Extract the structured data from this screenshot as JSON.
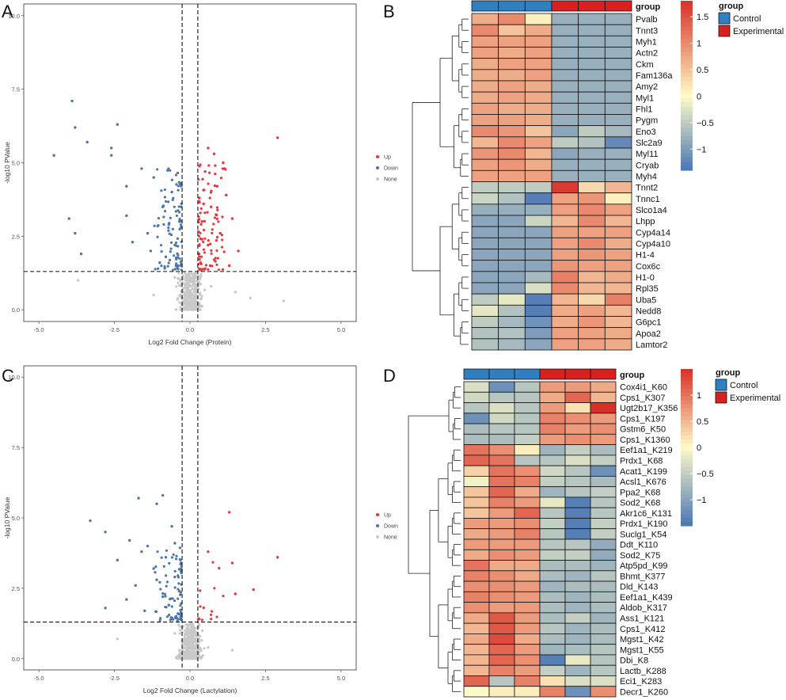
{
  "colors": {
    "up": "#e8363a",
    "down": "#4a76ab",
    "none": "#c8c8c8",
    "control": "#2f7fc1",
    "experimental": "#d8211e",
    "heat_low": "#4a76b5",
    "heat_mid": "#fffbc8",
    "heat_high": "#d73027"
  },
  "chart_data": [
    {
      "panel": "A",
      "type": "scatter",
      "xlabel": "Log2 Fold Change (Protein)",
      "ylabel": "-log10 PValue",
      "xlim": [
        -5.5,
        5.5
      ],
      "ylim": [
        -0.4,
        10.4
      ],
      "xticks": [
        -5.0,
        -2.5,
        0.0,
        2.5,
        5.0
      ],
      "yticks": [
        0.0,
        2.5,
        5.0,
        7.5,
        10.0
      ],
      "xtick_labels": [
        "-5.0",
        "-2.5",
        "0.0",
        "2.5",
        "5.0"
      ],
      "ytick_labels": [
        "0.0",
        "2.5",
        "5.0",
        "7.5",
        "10.0"
      ],
      "vlines": [
        -0.26,
        0.26
      ],
      "hline": 1.3,
      "legend": [
        "Up",
        "Down",
        "None"
      ],
      "series": [
        {
          "name": "Up",
          "points": [
            [
              2.9,
              5.85
            ],
            [
              0.6,
              5.5
            ],
            [
              0.8,
              5.3
            ],
            [
              1.1,
              5.0
            ],
            [
              0.5,
              4.7
            ],
            [
              0.9,
              4.2
            ],
            [
              1.2,
              3.9
            ],
            [
              0.7,
              3.5
            ],
            [
              1.4,
              3.1
            ],
            [
              0.4,
              3.0
            ],
            [
              1.0,
              2.6
            ],
            [
              0.6,
              2.2
            ],
            [
              1.6,
              2.0
            ],
            [
              0.3,
              1.9
            ],
            [
              0.8,
              1.7
            ],
            [
              1.3,
              1.5
            ],
            [
              0.5,
              1.4
            ],
            [
              0.4,
              2.4
            ],
            [
              0.35,
              1.6
            ],
            [
              0.45,
              3.6
            ]
          ]
        },
        {
          "name": "Down",
          "points": [
            [
              -3.9,
              7.1
            ],
            [
              -3.8,
              6.2
            ],
            [
              -2.4,
              6.3
            ],
            [
              -3.4,
              5.7
            ],
            [
              -2.6,
              5.5
            ],
            [
              -4.5,
              5.25
            ],
            [
              -2.6,
              5.25
            ],
            [
              -4.0,
              3.1
            ],
            [
              -3.8,
              2.6
            ],
            [
              -3.6,
              1.9
            ],
            [
              -2.1,
              4.2
            ],
            [
              -1.6,
              4.8
            ],
            [
              -1.2,
              4.5
            ],
            [
              -0.9,
              3.5
            ],
            [
              -0.7,
              2.9
            ],
            [
              -1.4,
              2.6
            ],
            [
              -2.1,
              3.2
            ],
            [
              -0.5,
              2.2
            ],
            [
              -0.8,
              1.8
            ],
            [
              -0.4,
              1.5
            ],
            [
              -1.0,
              1.6
            ],
            [
              -1.9,
              2.3
            ],
            [
              -0.6,
              4.0
            ],
            [
              -0.35,
              3.0
            ],
            [
              -1.3,
              2.0
            ]
          ]
        },
        {
          "name": "None",
          "points": [
            [
              0.0,
              0.5
            ],
            [
              0.1,
              0.3
            ],
            [
              -0.1,
              0.7
            ],
            [
              0.15,
              1.0
            ],
            [
              -0.15,
              0.9
            ],
            [
              0.05,
              0.2
            ],
            [
              -0.05,
              0.4
            ],
            [
              1.5,
              0.6
            ],
            [
              -1.2,
              0.5
            ],
            [
              -3.7,
              1.0
            ],
            [
              2.0,
              0.4
            ],
            [
              3.1,
              0.3
            ],
            [
              -0.5,
              1.1
            ],
            [
              0.7,
              0.8
            ]
          ]
        }
      ]
    },
    {
      "panel": "C",
      "type": "scatter",
      "xlabel": "Log2 Fold Change (Lactylation)",
      "ylabel": "-log10 PValue",
      "xlim": [
        -5.5,
        5.5
      ],
      "ylim": [
        -0.4,
        10.4
      ],
      "xticks": [
        -5.0,
        -2.5,
        0.0,
        2.5,
        5.0
      ],
      "yticks": [
        0.0,
        2.5,
        5.0,
        7.5,
        10.0
      ],
      "xtick_labels": [
        "-5.0",
        "-2.5",
        "0.0",
        "2.5",
        "5.0"
      ],
      "ytick_labels": [
        "0.0",
        "2.5",
        "5.0",
        "7.5",
        "10.0"
      ],
      "vlines": [
        -0.26,
        0.26
      ],
      "hline": 1.3,
      "legend": [
        "Up",
        "Down",
        "None"
      ],
      "series": [
        {
          "name": "Up",
          "points": [
            [
              1.3,
              5.2
            ],
            [
              0.6,
              3.8
            ],
            [
              1.4,
              3.4
            ],
            [
              2.9,
              3.6
            ],
            [
              2.1,
              2.45
            ],
            [
              1.5,
              2.3
            ]
          ]
        },
        {
          "name": "Down",
          "points": [
            [
              -3.3,
              4.9
            ],
            [
              -2.8,
              4.5
            ],
            [
              -1.7,
              5.7
            ],
            [
              -0.9,
              5.8
            ],
            [
              -1.1,
              5.5
            ],
            [
              -2.0,
              4.2
            ],
            [
              -1.4,
              4.0
            ],
            [
              -0.6,
              4.7
            ],
            [
              -0.8,
              3.6
            ],
            [
              -1.2,
              3.2
            ],
            [
              -2.4,
              3.5
            ],
            [
              -1.8,
              2.6
            ],
            [
              -0.5,
              2.9
            ],
            [
              -0.9,
              2.2
            ],
            [
              -2.8,
              1.8
            ],
            [
              -1.5,
              1.7
            ],
            [
              -0.4,
              1.6
            ],
            [
              -2.1,
              2.1
            ],
            [
              -0.7,
              1.9
            ],
            [
              -1.1,
              2.8
            ],
            [
              -0.3,
              3.4
            ],
            [
              -0.5,
              4.1
            ],
            [
              -1.6,
              3.8
            ],
            [
              -0.35,
              2.4
            ]
          ]
        },
        {
          "name": "None",
          "points": [
            [
              0.0,
              0.5
            ],
            [
              0.1,
              0.2
            ],
            [
              -0.1,
              0.7
            ],
            [
              0.15,
              1.0
            ],
            [
              -0.15,
              0.9
            ],
            [
              -2.4,
              0.7
            ],
            [
              0.6,
              0.4
            ],
            [
              1.4,
              0.3
            ],
            [
              -0.05,
              0.05
            ],
            [
              0.05,
              1.2
            ],
            [
              -0.5,
              0.9
            ],
            [
              0.3,
              0.6
            ]
          ]
        }
      ]
    },
    {
      "panel": "B",
      "type": "heatmap",
      "annotation_label": "group",
      "column_groups": [
        "Control",
        "Control",
        "Control",
        "Experimental",
        "Experimental",
        "Experimental"
      ],
      "rows": [
        "Pvalb",
        "Tnnt3",
        "Myh1",
        "Actn2",
        "Ckm",
        "Fam136a",
        "Amy2",
        "Myl1",
        "Fhl1",
        "Pygm",
        "Eno3",
        "Slc2a9",
        "Myl11",
        "Cryab",
        "Myh4",
        "Tnnt2",
        "Tnnc1",
        "Slco1a4",
        "Lhpp",
        "Cyp4a14",
        "Cyp4a10",
        "H1-4",
        "Cox6c",
        "H1-0",
        "Rpl35",
        "Uba5",
        "Nedd8",
        "G6pc1",
        "Apoa2",
        "Lamtor2"
      ],
      "values": [
        [
          0.7,
          1.0,
          0.1,
          -0.8,
          -0.8,
          -0.8
        ],
        [
          1.0,
          0.5,
          0.7,
          -0.8,
          -0.8,
          -0.8
        ],
        [
          0.8,
          0.8,
          0.8,
          -0.8,
          -0.8,
          -0.8
        ],
        [
          0.8,
          0.7,
          0.8,
          -0.8,
          -0.8,
          -0.8
        ],
        [
          0.7,
          0.8,
          0.8,
          -0.8,
          -0.8,
          -0.8
        ],
        [
          0.7,
          0.7,
          0.8,
          -0.8,
          -0.8,
          -0.8
        ],
        [
          0.7,
          0.8,
          0.7,
          -0.8,
          -0.8,
          -0.8
        ],
        [
          0.7,
          0.8,
          0.7,
          -0.8,
          -0.8,
          -0.8
        ],
        [
          0.8,
          0.7,
          0.7,
          -0.8,
          -0.8,
          -0.8
        ],
        [
          0.8,
          0.8,
          0.7,
          -0.8,
          -0.8,
          -0.8
        ],
        [
          1.0,
          0.9,
          0.5,
          -0.9,
          -0.5,
          -0.7
        ],
        [
          0.6,
          1.0,
          0.8,
          -0.5,
          -0.6,
          -1.2
        ],
        [
          0.9,
          1.0,
          0.6,
          -0.9,
          -0.8,
          -0.8
        ],
        [
          0.8,
          0.9,
          0.7,
          -0.8,
          -0.8,
          -0.8
        ],
        [
          0.8,
          0.8,
          0.8,
          -0.8,
          -0.8,
          -0.8
        ],
        [
          -0.5,
          -0.5,
          -0.5,
          1.7,
          0.3,
          0.6
        ],
        [
          -0.4,
          -0.6,
          -1.3,
          0.8,
          0.9,
          0.1
        ],
        [
          -0.8,
          -0.8,
          -0.8,
          0.8,
          1.0,
          0.8
        ],
        [
          -0.9,
          -0.9,
          -0.4,
          0.6,
          1.0,
          0.6
        ],
        [
          -0.9,
          -0.9,
          -0.9,
          0.8,
          0.8,
          0.8
        ],
        [
          -0.9,
          -0.9,
          -0.9,
          0.8,
          1.0,
          0.7
        ],
        [
          -0.9,
          -0.9,
          -0.9,
          0.8,
          0.9,
          0.8
        ],
        [
          -0.9,
          -0.9,
          -0.9,
          0.9,
          0.8,
          0.8
        ],
        [
          -0.9,
          -0.9,
          -0.7,
          1.1,
          0.6,
          0.7
        ],
        [
          -0.9,
          -0.9,
          -0.3,
          1.0,
          0.6,
          0.6
        ],
        [
          -0.5,
          -0.2,
          -1.3,
          0.6,
          0.3,
          1.1
        ],
        [
          -0.2,
          -0.6,
          -1.3,
          0.7,
          0.8,
          0.6
        ],
        [
          -0.5,
          -0.7,
          -1.1,
          0.7,
          0.9,
          0.6
        ],
        [
          -0.6,
          -0.6,
          -1.0,
          0.8,
          0.8,
          0.7
        ],
        [
          -0.6,
          -0.7,
          -0.9,
          0.8,
          0.8,
          0.7
        ]
      ],
      "colorbar_ticks": [
        1.5,
        1,
        0.5,
        0,
        -0.5,
        -1
      ],
      "colorbar_labels": [
        "1.5",
        "1",
        "0.5",
        "0",
        "−0.5",
        "−1"
      ],
      "colorbar_range": [
        -1.4,
        1.8
      ],
      "legend_title": "group",
      "legend_items": [
        "Control",
        "Experimental"
      ]
    },
    {
      "panel": "D",
      "type": "heatmap",
      "annotation_label": "group",
      "column_groups": [
        "Control",
        "Control",
        "Control",
        "Experimental",
        "Experimental",
        "Experimental"
      ],
      "rows": [
        "Cox4i1_K60",
        "Cps1_K307",
        "Ugt2b17_K356",
        "Cps1_K197",
        "Gstm6_K50",
        "Cps1_K1360",
        "Eef1a1_K219",
        "Prdx1_K68",
        "Acat1_K199",
        "Acsl1_K676",
        "Ppa2_K68",
        "Sod2_K68",
        "Akr1c6_K131",
        "Prdx1_K190",
        "Suclg1_K54",
        "Ddt_K110",
        "Sod2_K75",
        "Atp5pd_K99",
        "Bhmt_K377",
        "Dld_K143",
        "Eef1a1_K439",
        "Aldob_K317",
        "Ass1_K121",
        "Cps1_K412",
        "Mgst1_K42",
        "Mgst1_K55",
        "Dbi_K8",
        "Lactb_K288",
        "Eci1_K283",
        "Decr1_K260"
      ],
      "values": [
        [
          -0.3,
          -1.2,
          -0.6,
          0.7,
          0.7,
          0.6
        ],
        [
          -0.4,
          -0.6,
          -0.6,
          0.6,
          1.1,
          0.5
        ],
        [
          -0.6,
          -0.3,
          -0.6,
          0.7,
          0.2,
          1.5
        ],
        [
          -1.2,
          -0.4,
          -0.6,
          0.9,
          0.8,
          0.7
        ],
        [
          -0.7,
          -0.6,
          -0.6,
          0.9,
          0.7,
          0.8
        ],
        [
          -0.7,
          -0.7,
          -0.5,
          0.7,
          0.8,
          0.7
        ],
        [
          1.0,
          0.8,
          0.1,
          -0.8,
          -0.5,
          -0.7
        ],
        [
          1.1,
          1.0,
          -0.6,
          -0.6,
          -0.3,
          -0.5
        ],
        [
          0.3,
          1.0,
          0.8,
          -0.4,
          -0.6,
          -1.2
        ],
        [
          -0.1,
          1.0,
          0.9,
          -0.5,
          -0.6,
          -0.7
        ],
        [
          0.4,
          1.1,
          0.6,
          -0.8,
          -0.6,
          -0.5
        ],
        [
          0.4,
          0.9,
          0.7,
          -0.2,
          -1.4,
          -0.6
        ],
        [
          0.4,
          0.7,
          1.1,
          -0.6,
          -1.4,
          -0.6
        ],
        [
          0.7,
          0.7,
          0.8,
          -0.5,
          -1.4,
          -0.5
        ],
        [
          0.6,
          0.7,
          0.9,
          -0.6,
          -1.4,
          -0.5
        ],
        [
          0.7,
          0.7,
          0.7,
          -0.6,
          -0.6,
          -0.9
        ],
        [
          0.6,
          0.8,
          0.7,
          -0.5,
          -0.5,
          -0.9
        ],
        [
          1.0,
          0.6,
          0.6,
          -0.7,
          -0.7,
          -0.8
        ],
        [
          0.9,
          0.8,
          0.6,
          -0.7,
          -0.8,
          -0.6
        ],
        [
          0.8,
          0.8,
          0.7,
          -0.8,
          -0.7,
          -0.7
        ],
        [
          0.9,
          0.8,
          0.7,
          -0.7,
          -0.8,
          -0.7
        ],
        [
          0.8,
          0.7,
          0.7,
          -0.7,
          -0.8,
          -0.7
        ],
        [
          0.6,
          1.2,
          0.7,
          -0.7,
          -0.5,
          -0.8
        ],
        [
          0.5,
          1.2,
          0.7,
          -0.6,
          -0.8,
          -0.7
        ],
        [
          0.6,
          1.3,
          0.6,
          -0.7,
          -0.8,
          -0.7
        ],
        [
          0.5,
          1.1,
          0.7,
          -0.8,
          -0.7,
          -0.6
        ],
        [
          0.5,
          1.1,
          0.8,
          -1.4,
          -0.2,
          -0.6
        ],
        [
          0.5,
          0.9,
          0.7,
          -0.5,
          -0.8,
          -0.6
        ],
        [
          1.1,
          -0.6,
          0.9,
          0.2,
          -0.3,
          -0.3
        ],
        [
          0.0,
          0.1,
          0.1,
          0.9,
          -1.2,
          0.8
        ]
      ],
      "colorbar_ticks": [
        1,
        0.5,
        0,
        -0.5,
        -1
      ],
      "colorbar_labels": [
        "1",
        "0.5",
        "0",
        "−0.5",
        "−1"
      ],
      "colorbar_range": [
        -1.5,
        1.5
      ],
      "legend_title": "group",
      "legend_items": [
        "Control",
        "Experimental"
      ]
    }
  ],
  "panel_labels": [
    "A",
    "B",
    "C",
    "D"
  ]
}
